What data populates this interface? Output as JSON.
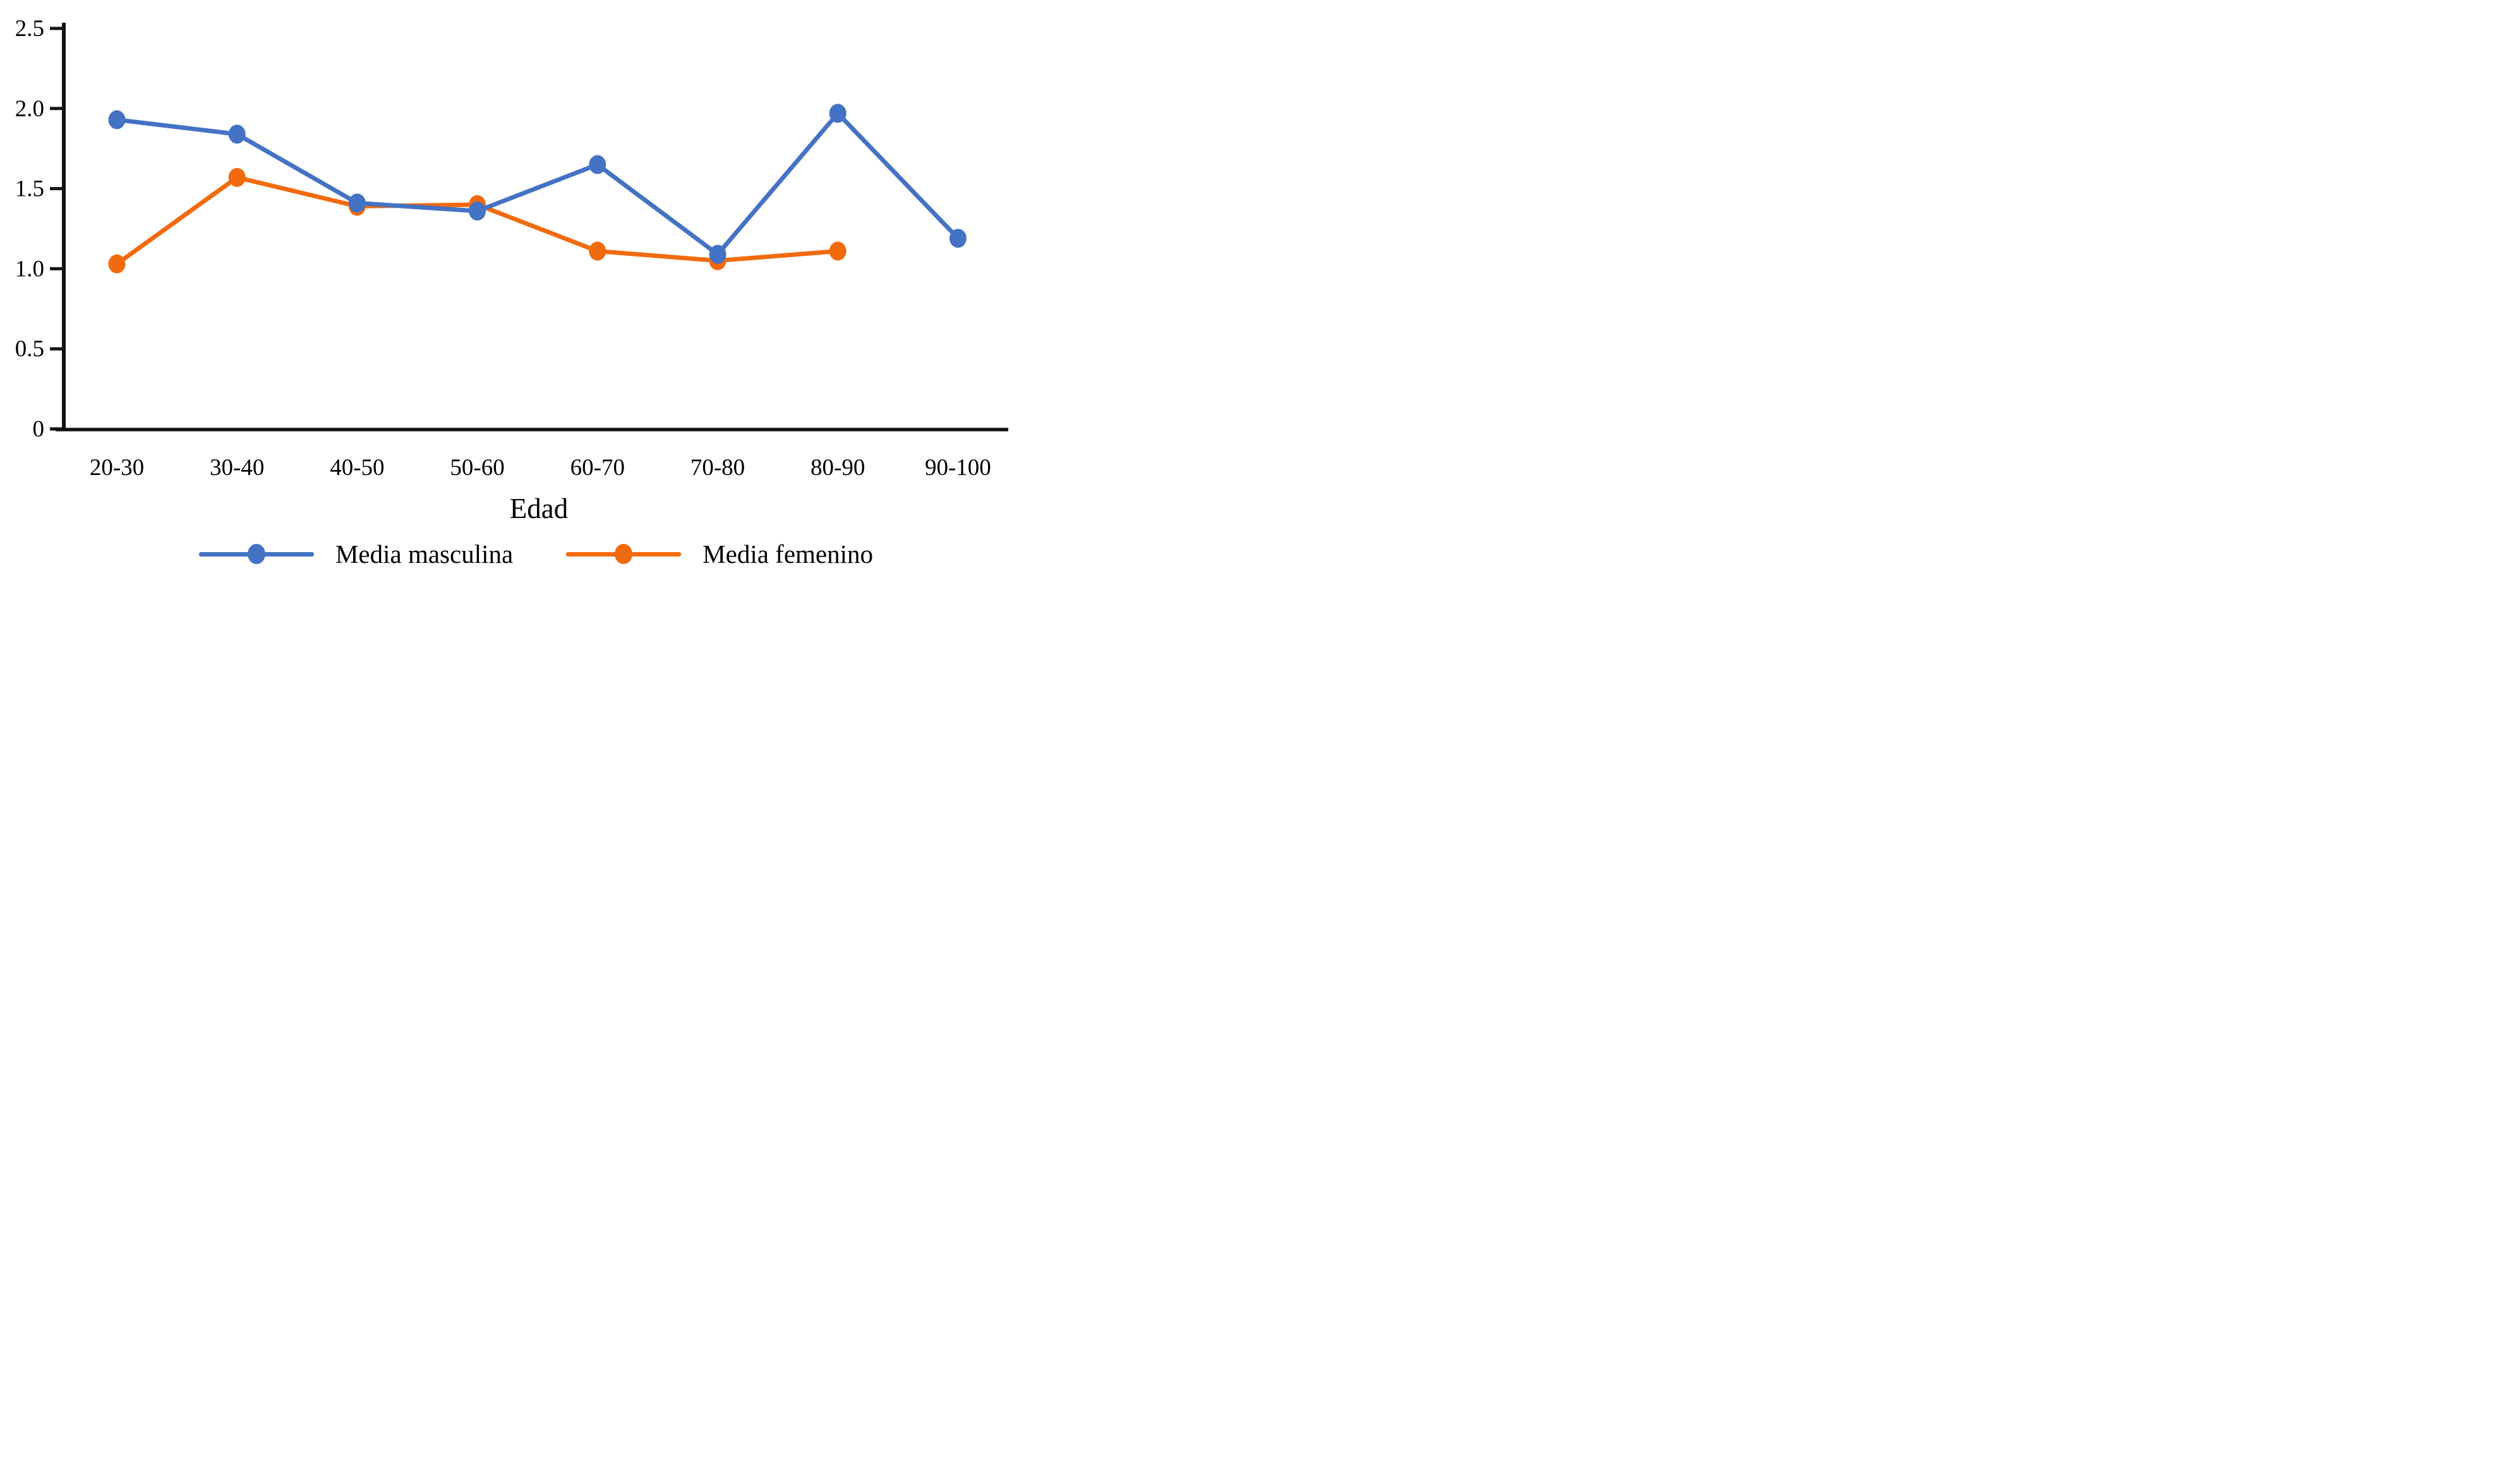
{
  "chart_data": {
    "type": "line",
    "title": "",
    "xlabel": "Edad",
    "ylabel": "",
    "categories": [
      "20-30",
      "30-40",
      "40-50",
      "50-60",
      "60-70",
      "70-80",
      "80-90",
      "90-100"
    ],
    "series": [
      {
        "name": "Media femenino",
        "color": "#F26A0E",
        "values": [
          1.03,
          1.57,
          1.39,
          1.4,
          1.11,
          1.05,
          1.11,
          null
        ]
      },
      {
        "name": "Media masculina",
        "color": "#4472C4",
        "values": [
          1.93,
          1.84,
          1.41,
          1.36,
          1.65,
          1.09,
          1.97,
          1.19
        ]
      }
    ],
    "legend": [
      {
        "name": "Media masculina",
        "color": "#4472C4"
      },
      {
        "name": "Media femenino",
        "color": "#F26A0E"
      }
    ],
    "legend_position": "bottom",
    "ylim": [
      0,
      2.5
    ],
    "yticks": [
      {
        "value": 0,
        "label": "0"
      },
      {
        "value": 0.5,
        "label": "0.5"
      },
      {
        "value": 1,
        "label": "1.0"
      },
      {
        "value": 1.5,
        "label": "1.5"
      },
      {
        "value": 2,
        "label": "2.0"
      },
      {
        "value": 2.5,
        "label": "2.5"
      }
    ],
    "grid": false,
    "axis_color": "#111111"
  }
}
